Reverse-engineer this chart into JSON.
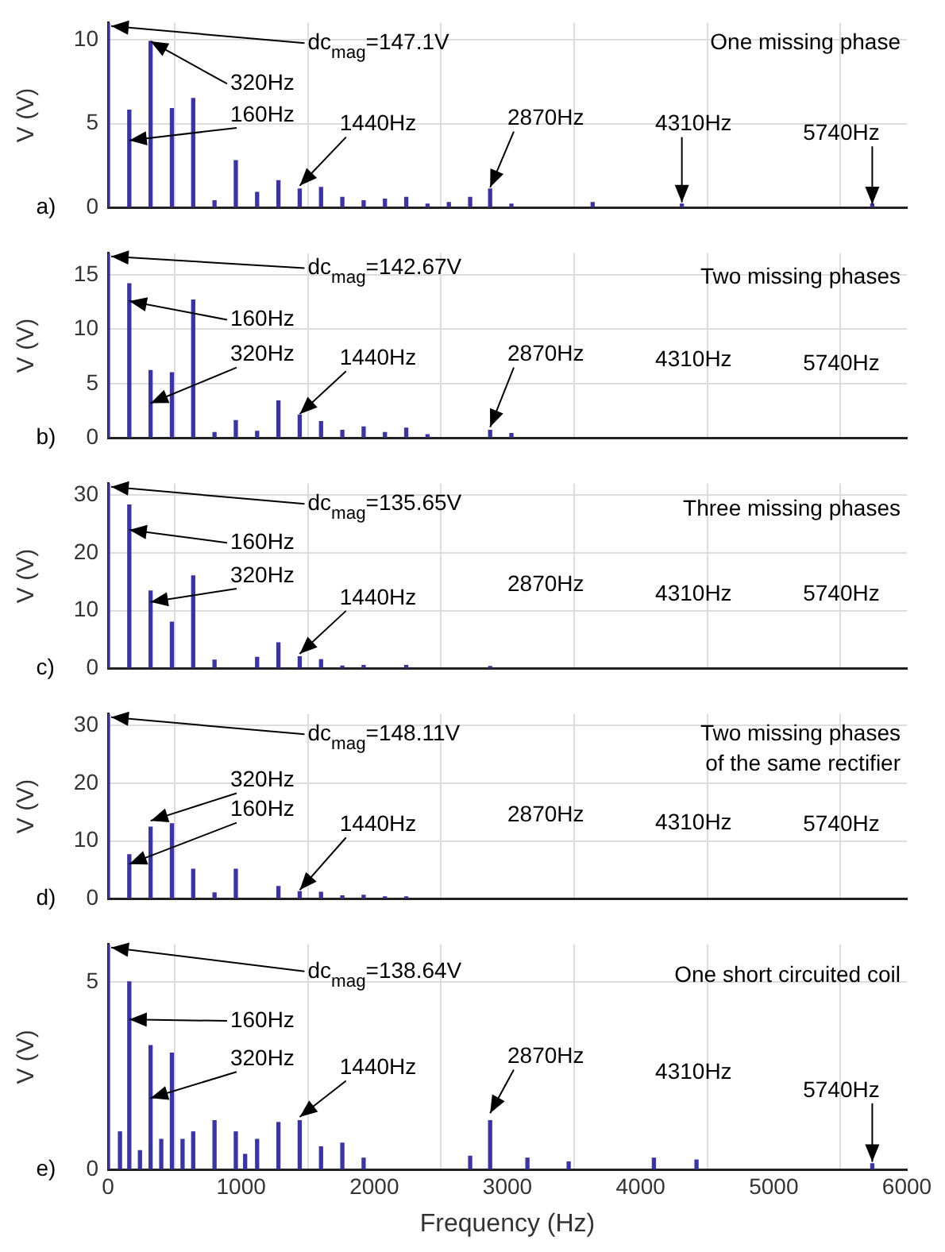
{
  "chart_data": [
    {
      "type": "bar",
      "title": "One missing phase",
      "ylabel": "V (V)",
      "color": "#3b33a8",
      "xlim": [
        0,
        6000
      ],
      "xticks": [
        0,
        1000,
        2000,
        3000,
        4000,
        5000,
        6000
      ],
      "ylim": [
        0,
        11
      ],
      "yticks": [
        0,
        5,
        10
      ],
      "grid": true,
      "tick_labels": "y",
      "x": [
        0,
        160,
        320,
        480,
        640,
        800,
        960,
        1120,
        1280,
        1440,
        1600,
        1760,
        1920,
        2080,
        2240,
        2400,
        2560,
        2720,
        2870,
        3030,
        3640,
        4310,
        5740
      ],
      "values": [
        11,
        5.8,
        9.9,
        5.9,
        6.5,
        0.4,
        2.8,
        0.9,
        1.6,
        1.1,
        1.2,
        0.6,
        0.4,
        0.5,
        0.6,
        0.2,
        0.3,
        0.6,
        1.1,
        0.2,
        0.3,
        0.2,
        0.2
      ],
      "annotations": [
        {
          "text": "dc$_{mag}$=147.1V",
          "x": 0,
          "y": 11
        },
        {
          "text": "320Hz",
          "x": 320,
          "y": 9.9
        },
        {
          "text": "160Hz",
          "x": 160,
          "y": 4
        },
        {
          "text": "1440Hz",
          "x": 1440,
          "y": 1.3
        },
        {
          "text": "2870Hz",
          "x": 2870,
          "y": 1.2
        },
        {
          "text": "4310Hz",
          "x": 4310,
          "y": 0.3
        },
        {
          "text": "5740Hz",
          "x": 5740,
          "y": 0.2
        },
        "a)"
      ]
    },
    {
      "type": "bar",
      "title": "Two missing phases",
      "ylabel": "V (V)",
      "color": "#3b33a8",
      "xlim": [
        0,
        6000
      ],
      "xticks": [
        0,
        1000,
        2000,
        3000,
        4000,
        5000,
        6000
      ],
      "ylim": [
        0,
        17
      ],
      "yticks": [
        0,
        5,
        10,
        15
      ],
      "grid": true,
      "tick_labels": "y",
      "x": [
        0,
        160,
        320,
        480,
        640,
        800,
        960,
        1120,
        1280,
        1440,
        1600,
        1760,
        1920,
        2080,
        2240,
        2400,
        2870,
        3030
      ],
      "values": [
        17,
        14.2,
        6.2,
        6,
        12.7,
        0.5,
        1.6,
        0.6,
        3.4,
        2.1,
        1.5,
        0.7,
        1,
        0.5,
        0.9,
        0.3,
        0.7,
        0.4
      ],
      "annotations": [
        {
          "text": "dc$_{mag}$=142.67V",
          "x": 0,
          "y": 17
        },
        {
          "text": "160Hz",
          "x": 160,
          "y": 12.6
        },
        {
          "text": "320Hz",
          "x": 320,
          "y": 3.2
        },
        {
          "text": "1440Hz",
          "x": 1440,
          "y": 2.2
        },
        {
          "text": "2870Hz",
          "x": 2870,
          "y": 1
        },
        "4310Hz",
        "5740Hz",
        "b)"
      ]
    },
    {
      "type": "bar",
      "title": "Three missing phases",
      "ylabel": "V (V)",
      "color": "#3b33a8",
      "xlim": [
        0,
        6000
      ],
      "xticks": [
        0,
        1000,
        2000,
        3000,
        4000,
        5000,
        6000
      ],
      "ylim": [
        0,
        32
      ],
      "yticks": [
        0,
        10,
        20,
        30
      ],
      "grid": true,
      "tick_labels": "y",
      "x": [
        0,
        160,
        320,
        480,
        640,
        800,
        1120,
        1280,
        1440,
        1600,
        1760,
        1920,
        2240,
        2870
      ],
      "values": [
        32,
        28.3,
        13.4,
        8,
        16,
        1.4,
        1.9,
        4.4,
        2,
        1.5,
        0.4,
        0.5,
        0.5,
        0.3
      ],
      "annotations": [
        {
          "text": "dc$_{mag}$=135.65V",
          "x": 0,
          "y": 32
        },
        {
          "text": "160Hz",
          "x": 160,
          "y": 24
        },
        {
          "text": "320Hz",
          "x": 320,
          "y": 11.5
        },
        {
          "text": "1440Hz",
          "x": 1440,
          "y": 2.5
        },
        "2870Hz",
        "4310Hz",
        "5740Hz",
        "c)"
      ]
    },
    {
      "type": "bar",
      "title": "Two missing phases\nof the same rectifier",
      "ylabel": "V (V)",
      "color": "#3b33a8",
      "xlim": [
        0,
        6000
      ],
      "xticks": [
        0,
        1000,
        2000,
        3000,
        4000,
        5000,
        6000
      ],
      "ylim": [
        0,
        32
      ],
      "yticks": [
        0,
        10,
        20,
        30
      ],
      "grid": true,
      "tick_labels": "y",
      "x": [
        0,
        160,
        320,
        480,
        640,
        800,
        960,
        1280,
        1440,
        1600,
        1760,
        1920,
        2080,
        2240
      ],
      "values": [
        32,
        7.6,
        12.4,
        13,
        5.1,
        1,
        5.1,
        2.1,
        1.2,
        1.1,
        0.5,
        0.6,
        0.3,
        0.3
      ],
      "annotations": [
        {
          "text": "dc$_{mag}$=148.11V",
          "x": 0,
          "y": 32
        },
        {
          "text": "320Hz",
          "x": 320,
          "y": 13.5
        },
        {
          "text": "160Hz",
          "x": 160,
          "y": 6
        },
        {
          "text": "1440Hz",
          "x": 1440,
          "y": 1.5
        },
        "2870Hz",
        "4310Hz",
        "5740Hz",
        "d)"
      ]
    },
    {
      "type": "bar",
      "title": "One short circuited coil",
      "xlabel": "Frequency (Hz)",
      "ylabel": "V (V)",
      "color": "#3b33a8",
      "xlim": [
        0,
        6000
      ],
      "xticks": [
        0,
        1000,
        2000,
        3000,
        4000,
        5000,
        6000
      ],
      "ylim": [
        0,
        6
      ],
      "yticks": [
        0,
        5
      ],
      "grid": true,
      "x": [
        0,
        90,
        160,
        240,
        320,
        400,
        480,
        560,
        640,
        800,
        960,
        1030,
        1120,
        1280,
        1440,
        1600,
        1760,
        1920,
        2720,
        2870,
        3150,
        3460,
        4100,
        4420,
        5740
      ],
      "values": [
        6,
        1,
        5,
        0.5,
        3.3,
        0.8,
        3.1,
        0.8,
        1,
        1.3,
        1,
        0.4,
        0.8,
        1.25,
        1.3,
        0.6,
        0.7,
        0.3,
        0.35,
        1.3,
        0.3,
        0.2,
        0.3,
        0.25,
        0.15
      ],
      "annotations": [
        {
          "text": "dc$_{mag}$=138.64V",
          "x": 0,
          "y": 6
        },
        {
          "text": "160Hz",
          "x": 160,
          "y": 4
        },
        {
          "text": "320Hz",
          "x": 320,
          "y": 1.9
        },
        {
          "text": "1440Hz",
          "x": 1440,
          "y": 1.4
        },
        {
          "text": "2870Hz",
          "x": 2870,
          "y": 1.5
        },
        "4310Hz",
        {
          "text": "5740Hz",
          "x": 5740,
          "y": 0.2
        },
        "e)"
      ]
    }
  ]
}
